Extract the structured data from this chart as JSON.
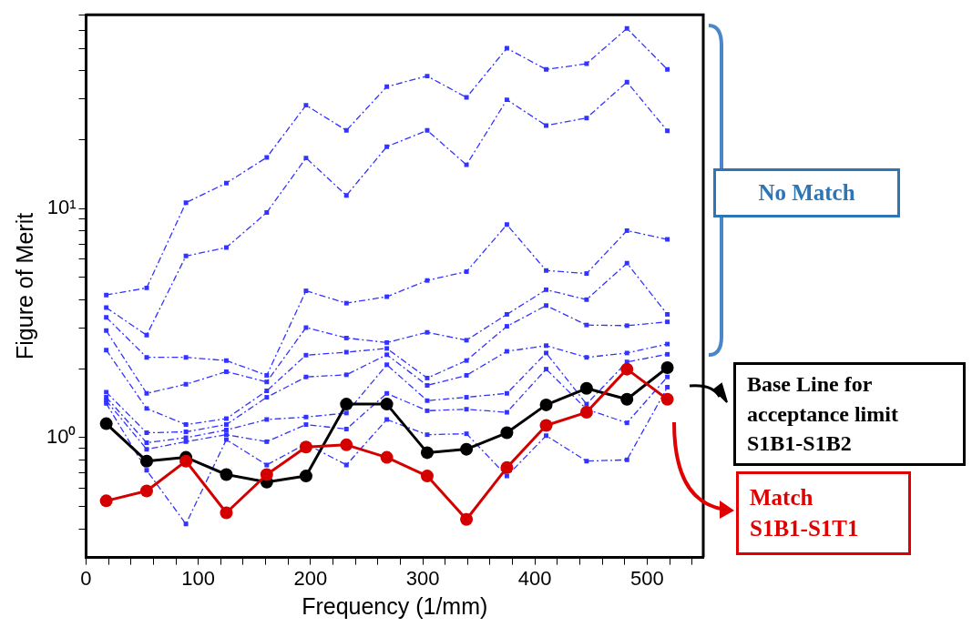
{
  "chart_data": {
    "type": "line",
    "xlabel": "Frequency (1/mm)",
    "ylabel": "Figure of Merit",
    "log": "y",
    "x": [
      18,
      54,
      89,
      125,
      161,
      196,
      232,
      268,
      304,
      339,
      375,
      410,
      446,
      482,
      518
    ],
    "xlim": [
      0,
      550
    ],
    "xticks": [
      0,
      {
        "value": 20,
        "label": null
      },
      {
        "value": 40,
        "label": null
      },
      {
        "value": 60,
        "label": null
      },
      {
        "value": 80,
        "label": null
      },
      100,
      {
        "value": 120,
        "label": null
      },
      {
        "value": 140,
        "label": null
      },
      {
        "value": 160,
        "label": null
      },
      {
        "value": 180,
        "label": null
      },
      200,
      {
        "value": 220,
        "label": null
      },
      {
        "value": 240,
        "label": null
      },
      {
        "value": 260,
        "label": null
      },
      {
        "value": 280,
        "label": null
      },
      300,
      {
        "value": 320,
        "label": null
      },
      {
        "value": 340,
        "label": null
      },
      {
        "value": 360,
        "label": null
      },
      {
        "value": 380,
        "label": null
      },
      400,
      {
        "value": 420,
        "label": null
      },
      {
        "value": 440,
        "label": null
      },
      {
        "value": 460,
        "label": null
      },
      {
        "value": 480,
        "label": null
      },
      500,
      {
        "value": 520,
        "label": null
      },
      {
        "value": 540,
        "label": null
      }
    ],
    "ylim": [
      0.3,
      70
    ],
    "yticks": [
      {
        "value": 0.4,
        "label": null
      },
      {
        "value": 0.5,
        "label": null
      },
      {
        "value": 0.6,
        "label": null
      },
      {
        "value": 0.7,
        "label": null
      },
      {
        "value": 0.8,
        "label": null
      },
      {
        "value": 0.9,
        "label": null
      },
      {
        "value": 1,
        "label": "10⁰"
      },
      {
        "value": 2,
        "label": null
      },
      {
        "value": 3,
        "label": null
      },
      {
        "value": 4,
        "label": null
      },
      {
        "value": 5,
        "label": null
      },
      {
        "value": 6,
        "label": null
      },
      {
        "value": 7,
        "label": null
      },
      {
        "value": 8,
        "label": null
      },
      {
        "value": 9,
        "label": null
      },
      {
        "value": 10,
        "label": "10¹"
      },
      {
        "value": 20,
        "label": null
      },
      {
        "value": 30,
        "label": null
      },
      {
        "value": 40,
        "label": null
      },
      {
        "value": 50,
        "label": null
      },
      {
        "value": 60,
        "label": null
      },
      {
        "value": 70,
        "label": null
      }
    ],
    "series": [
      {
        "color": "#3333ff",
        "marker": "square",
        "line_style": "dashed",
        "values": [
          4.19,
          4.5,
          10.6,
          12.9,
          16.7,
          28.2,
          21.9,
          34,
          37.8,
          30.5,
          50,
          40.4,
          42.8,
          61,
          40.4
        ]
      },
      {
        "color": "#3333ff",
        "marker": "square",
        "line_style": "dashed",
        "values": [
          3.69,
          2.8,
          6.2,
          6.75,
          9.6,
          16.6,
          11.4,
          18.6,
          21.9,
          15.5,
          29.8,
          23,
          24.8,
          35.6,
          21.8
        ]
      },
      {
        "color": "#3333ff",
        "marker": "square",
        "line_style": "dashed",
        "values": [
          3.35,
          2.24,
          2.24,
          2.17,
          1.87,
          4.37,
          3.86,
          4.12,
          4.85,
          5.3,
          8.5,
          5.36,
          5.2,
          8.0,
          7.33
        ]
      },
      {
        "color": "#3333ff",
        "marker": "square",
        "line_style": "dashed",
        "values": [
          2.93,
          1.56,
          1.71,
          1.94,
          1.75,
          3.02,
          2.72,
          2.6,
          2.88,
          2.66,
          3.45,
          4.42,
          4.0,
          5.77,
          3.45
        ]
      },
      {
        "color": "#3333ff",
        "marker": "square",
        "line_style": "dashed",
        "values": [
          2.41,
          1.34,
          1.14,
          1.21,
          1.6,
          2.29,
          2.36,
          2.45,
          1.82,
          2.17,
          3.06,
          3.77,
          3.1,
          3.08,
          3.2
        ]
      },
      {
        "color": "#3333ff",
        "marker": "square",
        "line_style": "dashed",
        "values": [
          1.58,
          1.05,
          1.06,
          1.14,
          1.5,
          1.84,
          1.88,
          2.3,
          1.69,
          1.87,
          2.38,
          2.52,
          2.24,
          2.34,
          2.56
        ]
      },
      {
        "color": "#3333ff",
        "marker": "square",
        "line_style": "dashed",
        "values": [
          1.5,
          0.95,
          1.0,
          1.08,
          1.2,
          1.23,
          1.28,
          2.08,
          1.45,
          1.5,
          1.56,
          2.34,
          1.4,
          2.14,
          2.31
        ]
      },
      {
        "color": "#3333ff",
        "marker": "square",
        "line_style": "dashed",
        "values": [
          1.45,
          0.89,
          0.96,
          1.03,
          0.96,
          1.14,
          1.09,
          1.56,
          1.31,
          1.33,
          1.29,
          1.99,
          1.33,
          1.16,
          1.84
        ]
      },
      {
        "color": "#3333ff",
        "marker": "square",
        "line_style": "dashed",
        "values": [
          1.41,
          0.72,
          0.42,
          0.98,
          0.76,
          0.94,
          0.76,
          1.2,
          1.03,
          1.04,
          0.68,
          1.02,
          0.79,
          0.8,
          1.66
        ]
      },
      {
        "color": "#000000",
        "marker": "circle",
        "line_style": "solid",
        "values": [
          1.15,
          0.79,
          0.82,
          0.69,
          0.64,
          0.68,
          1.4,
          1.4,
          0.86,
          0.89,
          1.05,
          1.39,
          1.64,
          1.47,
          2.02
        ]
      },
      {
        "color": "#d40000",
        "marker": "circle",
        "line_style": "solid",
        "values": [
          0.53,
          0.585,
          0.79,
          0.47,
          0.69,
          0.91,
          0.93,
          0.82,
          0.68,
          0.44,
          0.74,
          1.13,
          1.29,
          1.99,
          1.47
        ]
      }
    ],
    "annotations": [
      "No Match",
      "Base Line for\nacceptance limit\nS1B1-S1B2",
      "Match\nS1B1-S1T1"
    ]
  }
}
